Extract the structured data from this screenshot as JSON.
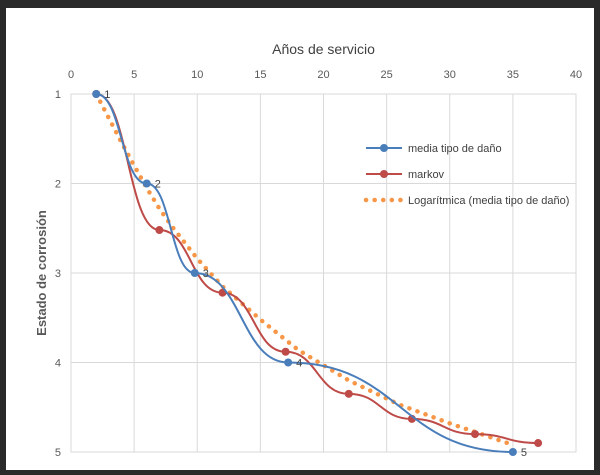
{
  "chart_data": {
    "type": "line",
    "title": "Años de servicio",
    "xlabel": "Años de servicio",
    "ylabel": "Estado de corrosión",
    "xlim": [
      0,
      40
    ],
    "ylim": [
      1,
      5
    ],
    "y_inverted": true,
    "x_axis_position": "top",
    "grid": true,
    "legend_position": "right",
    "x_ticks": [
      "0",
      "5",
      "10",
      "15",
      "20",
      "25",
      "30",
      "35",
      "40"
    ],
    "y_ticks": [
      "1",
      "2",
      "3",
      "4",
      "5"
    ],
    "series": [
      {
        "name": "media tipo de daño",
        "color": "#4a7ebb",
        "style": "line-marker",
        "x": [
          2,
          6,
          9.8,
          17.2,
          35
        ],
        "y": [
          1,
          2,
          3,
          4,
          5
        ],
        "point_labels": [
          "1",
          "2",
          "3",
          "4",
          "5"
        ]
      },
      {
        "name": "markov",
        "color": "#be4b48",
        "style": "line-marker",
        "x": [
          2,
          7,
          12,
          17,
          22,
          27,
          32,
          37
        ],
        "y": [
          1,
          2.52,
          3.22,
          3.88,
          4.35,
          4.63,
          4.8,
          4.9
        ]
      },
      {
        "name": "Logarítmica (media tipo de daño)",
        "color": "#f79646",
        "style": "dotted",
        "x": [
          2,
          3,
          4,
          5,
          6,
          7,
          8,
          10,
          12,
          15,
          18,
          22,
          26,
          30,
          35
        ],
        "y": [
          1,
          1.27,
          1.54,
          1.8,
          2.05,
          2.28,
          2.48,
          2.84,
          3.15,
          3.52,
          3.86,
          4.2,
          4.47,
          4.68,
          4.92
        ]
      }
    ]
  }
}
